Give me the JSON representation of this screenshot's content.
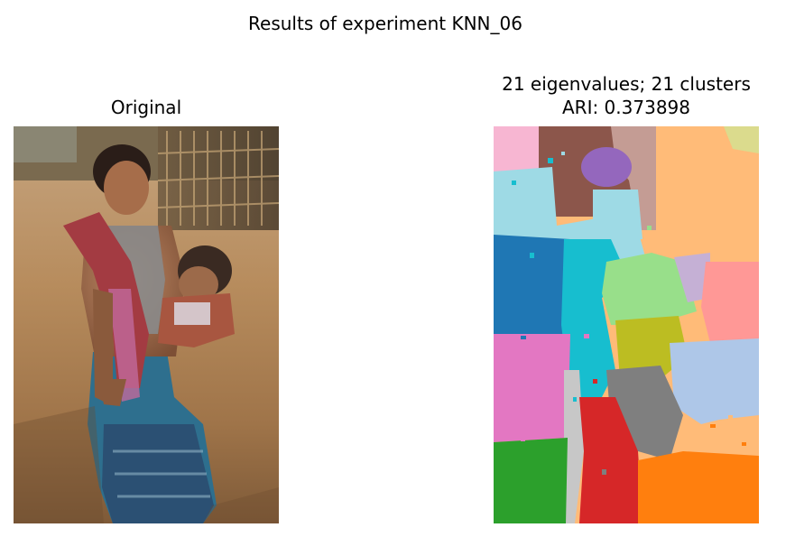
{
  "figure": {
    "suptitle": "Results of experiment KNN_06"
  },
  "panels": [
    {
      "id": "original",
      "title": "Original",
      "content": "photograph"
    },
    {
      "id": "clustering",
      "title_line1": "21 eigenvalues; 21 clusters",
      "title_line2": "ARI: 0.373898",
      "content": "segmentation"
    }
  ],
  "colors": {
    "background": "#ffffff",
    "text": "#000000",
    "palette": [
      "#1f77b4",
      "#ff7f0e",
      "#2ca02c",
      "#d62728",
      "#9467bd",
      "#8c564b",
      "#e377c2",
      "#7f7f7f",
      "#bcbd22",
      "#17becf",
      "#aec7e8",
      "#ffbb78",
      "#98df8a",
      "#ff9896",
      "#c5b0d5",
      "#c49c94",
      "#f7b6d2",
      "#c7c7c7",
      "#dbdb8d",
      "#9edae5"
    ]
  }
}
